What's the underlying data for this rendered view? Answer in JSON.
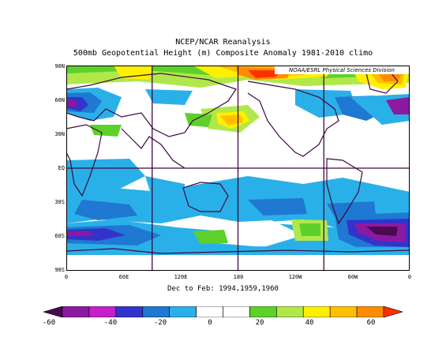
{
  "title_line1": "NCEP/NCAR Reanalysis",
  "title_line2": "500mb Geopotential Height (m) Composite Anomaly 1981-2010 climo",
  "credit": "NOAA/ESRL Physical Sciences Division",
  "subtitle": "Dec to Feb: 1994,1959,1960",
  "lat_labels": [
    "90N",
    "60N",
    "30N",
    "EQ",
    "30S",
    "60S",
    "90S"
  ],
  "lon_labels": [
    "0",
    "60E",
    "120E",
    "180",
    "120W",
    "60W",
    "0"
  ],
  "colorbar_labels": [
    "-60",
    "-40",
    "-20",
    "0",
    "20",
    "40",
    "60"
  ],
  "colorbar_colors": [
    "#4b0a4f",
    "#8c1aa0",
    "#c71ec7",
    "#3333cc",
    "#1f78d1",
    "#2ab0e8",
    "#ffffff",
    "#ffffff",
    "#5dd12a",
    "#b0e84a",
    "#ffef00",
    "#ffbf00",
    "#ff8c00",
    "#ff3000"
  ],
  "map": {
    "grid": true,
    "projection": "equirectangular",
    "central_meridian": "180"
  }
}
